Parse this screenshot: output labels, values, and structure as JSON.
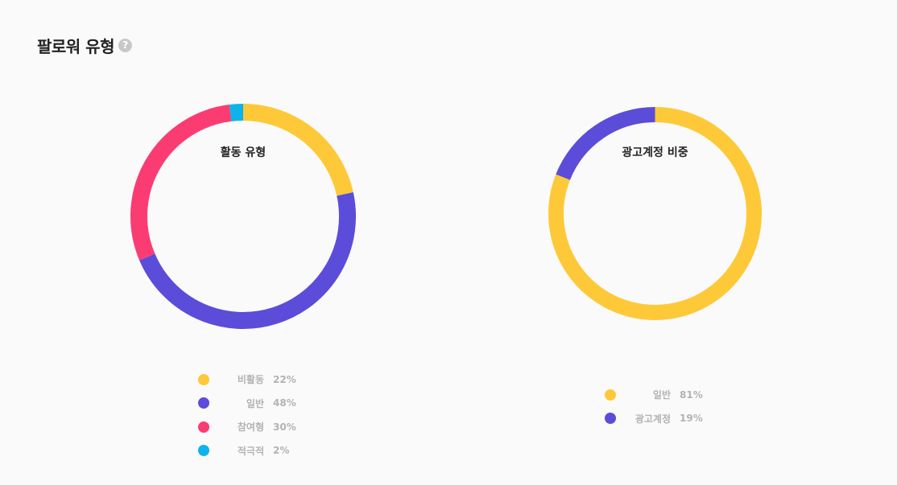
{
  "page": {
    "title": "팔로워 유형",
    "help_icon": "?"
  },
  "chart_data": [
    {
      "type": "pie",
      "title": "활동 유형",
      "series": [
        {
          "name": "비활동",
          "value": 22,
          "display": "22%",
          "color": "#fec938"
        },
        {
          "name": "일반",
          "value": 48,
          "display": "48%",
          "color": "#5b4cd9"
        },
        {
          "name": "참여형",
          "value": 30,
          "display": "30%",
          "color": "#fb3c73"
        },
        {
          "name": "적극적",
          "value": 2,
          "display": "2%",
          "color": "#0eb3ec"
        }
      ]
    },
    {
      "type": "pie",
      "title": "광고계정 비중",
      "series": [
        {
          "name": "일반",
          "value": 81,
          "display": "81%",
          "color": "#fec938"
        },
        {
          "name": "광고계정",
          "value": 19,
          "display": "19%",
          "color": "#5b4cd9"
        }
      ]
    }
  ]
}
